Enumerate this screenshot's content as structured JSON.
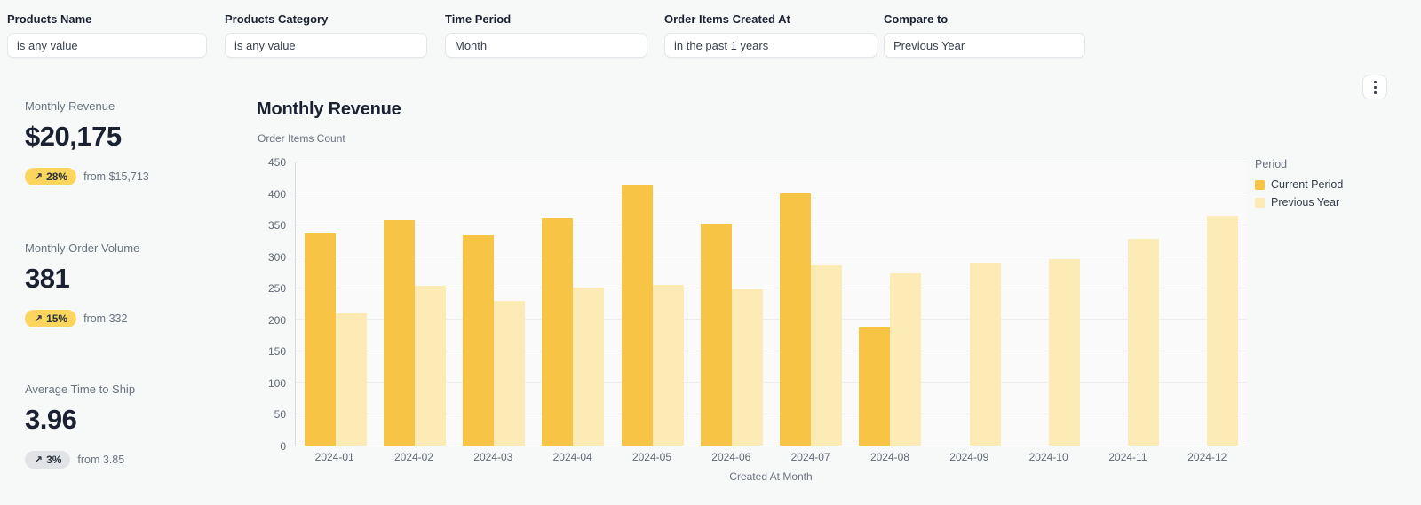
{
  "filters": [
    {
      "label": "Products Name",
      "value": "is any value"
    },
    {
      "label": "Products Category",
      "value": "is any value"
    },
    {
      "label": "Time Period",
      "value": "Month"
    },
    {
      "label": "Order Items Created At",
      "value": "in the past 1 years"
    },
    {
      "label": "Compare to",
      "value": "Previous Year"
    }
  ],
  "kpis": [
    {
      "label": "Monthly Revenue",
      "value": "$20,175",
      "delta_arrow": "↗",
      "delta": "28%",
      "delta_tone": "yellow",
      "from": "from $15,713"
    },
    {
      "label": "Monthly Order Volume",
      "value": "381",
      "delta_arrow": "↗",
      "delta": "15%",
      "delta_tone": "yellow",
      "from": "from 332"
    },
    {
      "label": "Average Time to Ship",
      "value": "3.96",
      "delta_arrow": "↗",
      "delta": "3%",
      "delta_tone": "gray",
      "from": "from 3.85"
    }
  ],
  "chart": {
    "title": "Monthly Revenue",
    "y_axis_label": "Order Items Count",
    "x_axis_label": "Created At Month",
    "legend": {
      "title": "Period",
      "items": [
        {
          "label": "Current Period",
          "color": "#f8c445"
        },
        {
          "label": "Previous Year",
          "color": "#fcebb5"
        }
      ]
    }
  },
  "chart_data": {
    "type": "bar",
    "title": "Monthly Revenue",
    "xlabel": "Created At Month",
    "ylabel": "Order Items Count",
    "ylim": [
      0,
      450
    ],
    "y_ticks": [
      0,
      50,
      100,
      150,
      200,
      250,
      300,
      350,
      400,
      450
    ],
    "grid": true,
    "legend_position": "right",
    "categories": [
      "2024-01",
      "2024-02",
      "2024-03",
      "2024-04",
      "2024-05",
      "2024-06",
      "2024-07",
      "2024-08",
      "2024-09",
      "2024-10",
      "2024-11",
      "2024-12"
    ],
    "series": [
      {
        "name": "Current Period",
        "color": "#f8c445",
        "values": [
          337,
          358,
          335,
          361,
          415,
          352,
          400,
          188,
          null,
          null,
          null,
          null
        ]
      },
      {
        "name": "Previous Year",
        "color": "#fcebb5",
        "values": [
          210,
          254,
          230,
          251,
          256,
          248,
          287,
          274,
          290,
          296,
          329,
          366
        ]
      }
    ]
  }
}
